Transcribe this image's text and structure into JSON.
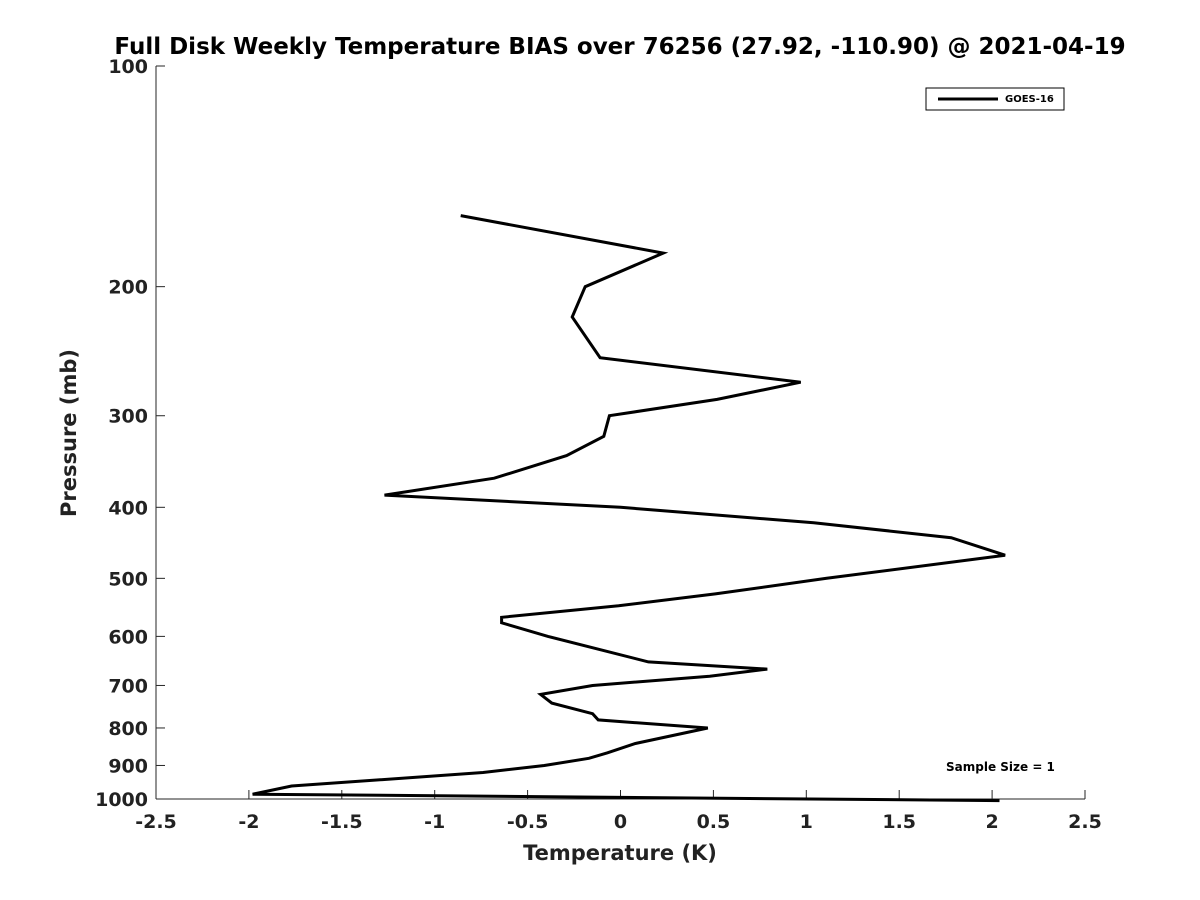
{
  "chart_data": {
    "type": "line",
    "title": "Full Disk Weekly Temperature BIAS over 76256 (27.92, -110.90) @ 2021-04-19",
    "xlabel": "Temperature (K)",
    "ylabel": "Pressure (mb)",
    "xlim": [
      -2.5,
      2.5
    ],
    "ylim": [
      100,
      1000
    ],
    "y_scale": "log",
    "y_reversed": true,
    "x_ticks": [
      -2.5,
      -2,
      -1.5,
      -1,
      -0.5,
      0,
      0.5,
      1,
      1.5,
      2,
      2.5
    ],
    "x_tick_labels": [
      "-2.5",
      "-2",
      "-1.5",
      "-1",
      "-0.5",
      "0",
      "0.5",
      "1",
      "1.5",
      "2",
      "2.5"
    ],
    "y_ticks": [
      100,
      200,
      300,
      400,
      500,
      600,
      700,
      800,
      900,
      1000
    ],
    "y_tick_labels": [
      "100",
      "200",
      "300",
      "400",
      "500",
      "600",
      "700",
      "800",
      "900",
      "1000"
    ],
    "grid": false,
    "legend_position": "top-right",
    "series": [
      {
        "name": "GOES-16",
        "color": "#000000",
        "points": [
          {
            "x": -0.86,
            "p": 160
          },
          {
            "x": 0.23,
            "p": 180
          },
          {
            "x": -0.19,
            "p": 200
          },
          {
            "x": -0.26,
            "p": 220
          },
          {
            "x": -0.11,
            "p": 250
          },
          {
            "x": 0.97,
            "p": 270
          },
          {
            "x": 0.52,
            "p": 285
          },
          {
            "x": -0.06,
            "p": 300
          },
          {
            "x": -0.09,
            "p": 320
          },
          {
            "x": -0.29,
            "p": 340
          },
          {
            "x": -0.68,
            "p": 365
          },
          {
            "x": -1.27,
            "p": 385
          },
          {
            "x": 0.0,
            "p": 400
          },
          {
            "x": 1.04,
            "p": 420
          },
          {
            "x": 1.78,
            "p": 440
          },
          {
            "x": 2.07,
            "p": 465
          },
          {
            "x": 1.11,
            "p": 500
          },
          {
            "x": 0.51,
            "p": 525
          },
          {
            "x": -0.01,
            "p": 545
          },
          {
            "x": -0.64,
            "p": 565
          },
          {
            "x": -0.64,
            "p": 575
          },
          {
            "x": -0.39,
            "p": 600
          },
          {
            "x": 0.15,
            "p": 650
          },
          {
            "x": 0.79,
            "p": 665
          },
          {
            "x": 0.48,
            "p": 680
          },
          {
            "x": -0.15,
            "p": 700
          },
          {
            "x": -0.43,
            "p": 720
          },
          {
            "x": -0.37,
            "p": 740
          },
          {
            "x": -0.15,
            "p": 765
          },
          {
            "x": -0.12,
            "p": 780
          },
          {
            "x": 0.47,
            "p": 800
          },
          {
            "x": 0.08,
            "p": 840
          },
          {
            "x": -0.07,
            "p": 865
          },
          {
            "x": -0.17,
            "p": 880
          },
          {
            "x": -0.41,
            "p": 900
          },
          {
            "x": -0.74,
            "p": 920
          },
          {
            "x": -1.77,
            "p": 960
          },
          {
            "x": -1.98,
            "p": 985
          },
          {
            "x": 2.04,
            "p": 1005
          }
        ]
      }
    ],
    "legend": [
      {
        "label": "GOES-16"
      }
    ],
    "annotations": [
      {
        "text": "Sample Size = 1"
      }
    ]
  }
}
